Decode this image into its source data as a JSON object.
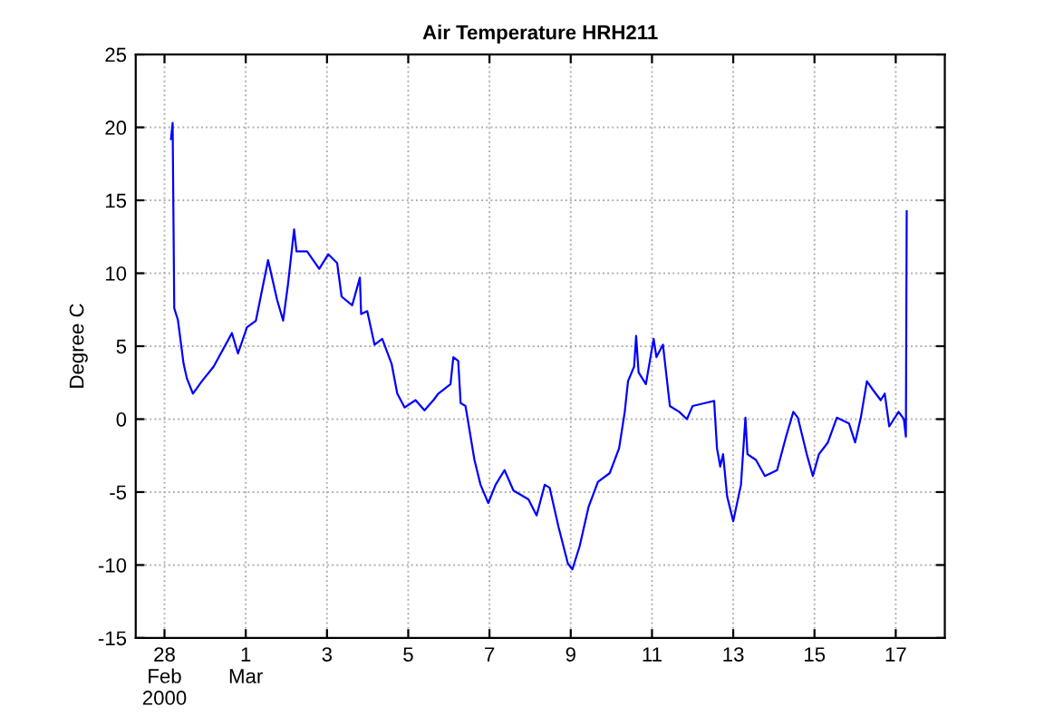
{
  "chart_data": {
    "type": "line",
    "title": "Air Temperature HRH211",
    "ylabel": "Degree C",
    "x": [
      "2000-02-28T03:50",
      "2000-02-28T04:48",
      "2000-02-28T05:46",
      "2000-02-28T07:55",
      "2000-02-28T11:17",
      "2000-02-28T13:12",
      "2000-02-28T16:48",
      "2000-02-28T22:05",
      "2000-02-29T05:02",
      "2000-02-29T15:50",
      "2000-02-29T19:26",
      "2000-03-01T00:43",
      "2000-03-01T06:00",
      "2000-03-01T13:12",
      "2000-03-01T18:29",
      "2000-03-01T22:05",
      "2000-03-02T00:58",
      "2000-03-02T04:34",
      "2000-03-02T06:00",
      "2000-03-02T12:14",
      "2000-03-02T19:26",
      "2000-03-03T00:43",
      "2000-03-03T06:00",
      "2000-03-03T08:38",
      "2000-03-03T14:53",
      "2000-03-03T19:26",
      "2000-03-03T20:10",
      "2000-03-03T23:46",
      "2000-03-04T04:05",
      "2000-03-04T08:38",
      "2000-03-04T14:10",
      "2000-03-04T17:31",
      "2000-03-04T21:50",
      "2000-03-05T04:19",
      "2000-03-05T09:36",
      "2000-03-05T14:53",
      "2000-03-05T17:46",
      "2000-03-06T00:58",
      "2000-03-06T02:38",
      "2000-03-06T05:31",
      "2000-03-06T06:58",
      "2000-03-06T09:50",
      "2000-03-06T15:07",
      "2000-03-06T18:43",
      "2000-03-06T23:17",
      "2000-03-07T03:36",
      "2000-03-07T08:53",
      "2000-03-07T14:10",
      "2000-03-07T23:02",
      "2000-03-08T03:50",
      "2000-03-08T08:38",
      "2000-03-08T11:31",
      "2000-03-08T16:48",
      "2000-03-08T22:19",
      "2000-03-09T00:58",
      "2000-03-09T05:17",
      "2000-03-09T10:34",
      "2000-03-09T16:05",
      "2000-03-09T23:02",
      "2000-03-10T04:34",
      "2000-03-10T07:55",
      "2000-03-10T09:50",
      "2000-03-10T13:26",
      "2000-03-10T14:38",
      "2000-03-10T16:05",
      "2000-03-10T20:24",
      "2000-03-11T00:58",
      "2000-03-11T02:38",
      "2000-03-11T06:29",
      "2000-03-11T10:34",
      "2000-03-11T16:05",
      "2000-03-11T20:38",
      "2000-03-12T00:00",
      "2000-03-12T07:12",
      "2000-03-12T12:43",
      "2000-03-12T14:24",
      "2000-03-12T16:19",
      "2000-03-12T18:00",
      "2000-03-12T20:24",
      "2000-03-13T00:00",
      "2000-03-13T04:34",
      "2000-03-13T07:12",
      "2000-03-13T08:24",
      "2000-03-13T13:26",
      "2000-03-13T18:43",
      "2000-03-14T01:55",
      "2000-03-14T07:12",
      "2000-03-14T11:31",
      "2000-03-14T14:10",
      "2000-03-14T19:26",
      "2000-03-14T23:02",
      "2000-03-15T02:38",
      "2000-03-15T07:55",
      "2000-03-15T13:12",
      "2000-03-15T20:24",
      "2000-03-16T00:00",
      "2000-03-16T03:22",
      "2000-03-16T06:58",
      "2000-03-16T10:34",
      "2000-03-16T15:07",
      "2000-03-16T17:31",
      "2000-03-16T20:10",
      "2000-03-17T01:41",
      "2000-03-17T04:48",
      "2000-03-17T06:00",
      "2000-03-17T06:29"
    ],
    "series": [
      {
        "color": "#0000ff",
        "values": [
          19.2,
          20.3,
          7.6,
          6.8,
          3.8,
          2.8,
          1.75,
          2.6,
          3.6,
          5.9,
          4.5,
          6.3,
          6.75,
          10.9,
          8.2,
          6.75,
          9.25,
          13,
          11.5,
          11.5,
          10.3,
          11.3,
          10.7,
          8.4,
          7.8,
          9.7,
          7.2,
          7.4,
          5.1,
          5.5,
          3.8,
          1.75,
          0.8,
          1.3,
          0.6,
          1.3,
          1.75,
          2.4,
          4.25,
          4.0,
          1.1,
          0.9,
          -2.8,
          -4.5,
          -5.75,
          -4.5,
          -3.5,
          -4.9,
          -5.5,
          -6.6,
          -4.5,
          -4.7,
          -7.4,
          -9.9,
          -10.3,
          -8.7,
          -6,
          -4.3,
          -3.7,
          -2,
          0.5,
          2.6,
          3.6,
          5.7,
          3.2,
          2.4,
          5.5,
          4.25,
          5.1,
          0.9,
          0.5,
          0,
          0.9,
          1.1,
          1.25,
          -2,
          -3.25,
          -2.4,
          -5.3,
          -7,
          -4.5,
          0.1,
          -2.4,
          -2.8,
          -3.9,
          -3.5,
          -1.2,
          0.5,
          0.1,
          -2.4,
          -3.9,
          -2.4,
          -1.6,
          0.1,
          -0.3,
          -1.6,
          0.1,
          2.6,
          2.0,
          1.3,
          1.75,
          -0.5,
          0.5,
          0,
          -1.2,
          14.25
        ]
      }
    ],
    "xlim": [
      "2000-02-27T07:00",
      "2000-03-18T05:00"
    ],
    "xticks": [
      {
        "value": "2000-02-28",
        "label": "28\nFeb\n2000"
      },
      {
        "value": "2000-03-01",
        "label": "1\nMar"
      },
      {
        "value": "2000-03-03",
        "label": "3"
      },
      {
        "value": "2000-03-05",
        "label": "5"
      },
      {
        "value": "2000-03-07",
        "label": "7"
      },
      {
        "value": "2000-03-09",
        "label": "9"
      },
      {
        "value": "2000-03-11",
        "label": "11"
      },
      {
        "value": "2000-03-13",
        "label": "13"
      },
      {
        "value": "2000-03-15",
        "label": "15"
      },
      {
        "value": "2000-03-17",
        "label": "17"
      }
    ],
    "ylim": [
      -15,
      25
    ],
    "yticks": [
      -15,
      -10,
      -5,
      0,
      5,
      10,
      15,
      20,
      25
    ],
    "grid": true,
    "line_style": "solid"
  }
}
